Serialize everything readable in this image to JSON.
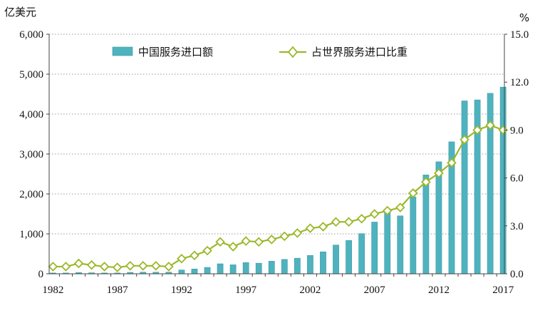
{
  "chart_data": {
    "type": "bar+line",
    "left_axis_unit": "亿美元",
    "right_axis_unit": "%",
    "x": [
      1982,
      1983,
      1984,
      1985,
      1986,
      1987,
      1988,
      1989,
      1990,
      1991,
      1992,
      1993,
      1994,
      1995,
      1996,
      1997,
      1998,
      1999,
      2000,
      2001,
      2002,
      2003,
      2004,
      2005,
      2006,
      2007,
      2008,
      2009,
      2010,
      2011,
      2012,
      2013,
      2014,
      2015,
      2016,
      2017
    ],
    "x_tick_labels": [
      "1982",
      "1987",
      "1992",
      "1997",
      "2002",
      "2007",
      "2012",
      "2017"
    ],
    "left_ylim": [
      0,
      6000
    ],
    "left_ticks": [
      "0",
      "1,000",
      "2,000",
      "3,000",
      "4,000",
      "5,000",
      "6,000"
    ],
    "right_ylim": [
      0,
      15
    ],
    "right_ticks": [
      "0.0",
      "3.0",
      "6.0",
      "9.0",
      "12.0",
      "15.0"
    ],
    "grid": true,
    "legend_placement": "top",
    "series": [
      {
        "name": "中国服务进口额",
        "kind": "bar",
        "axis": "left",
        "color": "#4fb3bf",
        "values": [
          20,
          20,
          30,
          25,
          20,
          20,
          35,
          40,
          40,
          40,
          95,
          120,
          160,
          250,
          225,
          280,
          265,
          315,
          360,
          390,
          460,
          550,
          720,
          835,
          1005,
          1295,
          1580,
          1450,
          1925,
          2475,
          2805,
          3305,
          4330,
          4355,
          4520,
          4675
        ]
      },
      {
        "name": "占世界服务进口比重",
        "kind": "line",
        "axis": "right",
        "color": "#9bb82a",
        "values": [
          0.45,
          0.45,
          0.65,
          0.55,
          0.45,
          0.4,
          0.5,
          0.5,
          0.5,
          0.45,
          0.95,
          1.15,
          1.45,
          2.0,
          1.7,
          2.05,
          2.0,
          2.15,
          2.35,
          2.55,
          2.85,
          2.95,
          3.25,
          3.25,
          3.45,
          3.75,
          3.95,
          4.15,
          5.05,
          5.75,
          6.3,
          6.95,
          8.4,
          9.0,
          9.3,
          9.0
        ]
      }
    ]
  }
}
